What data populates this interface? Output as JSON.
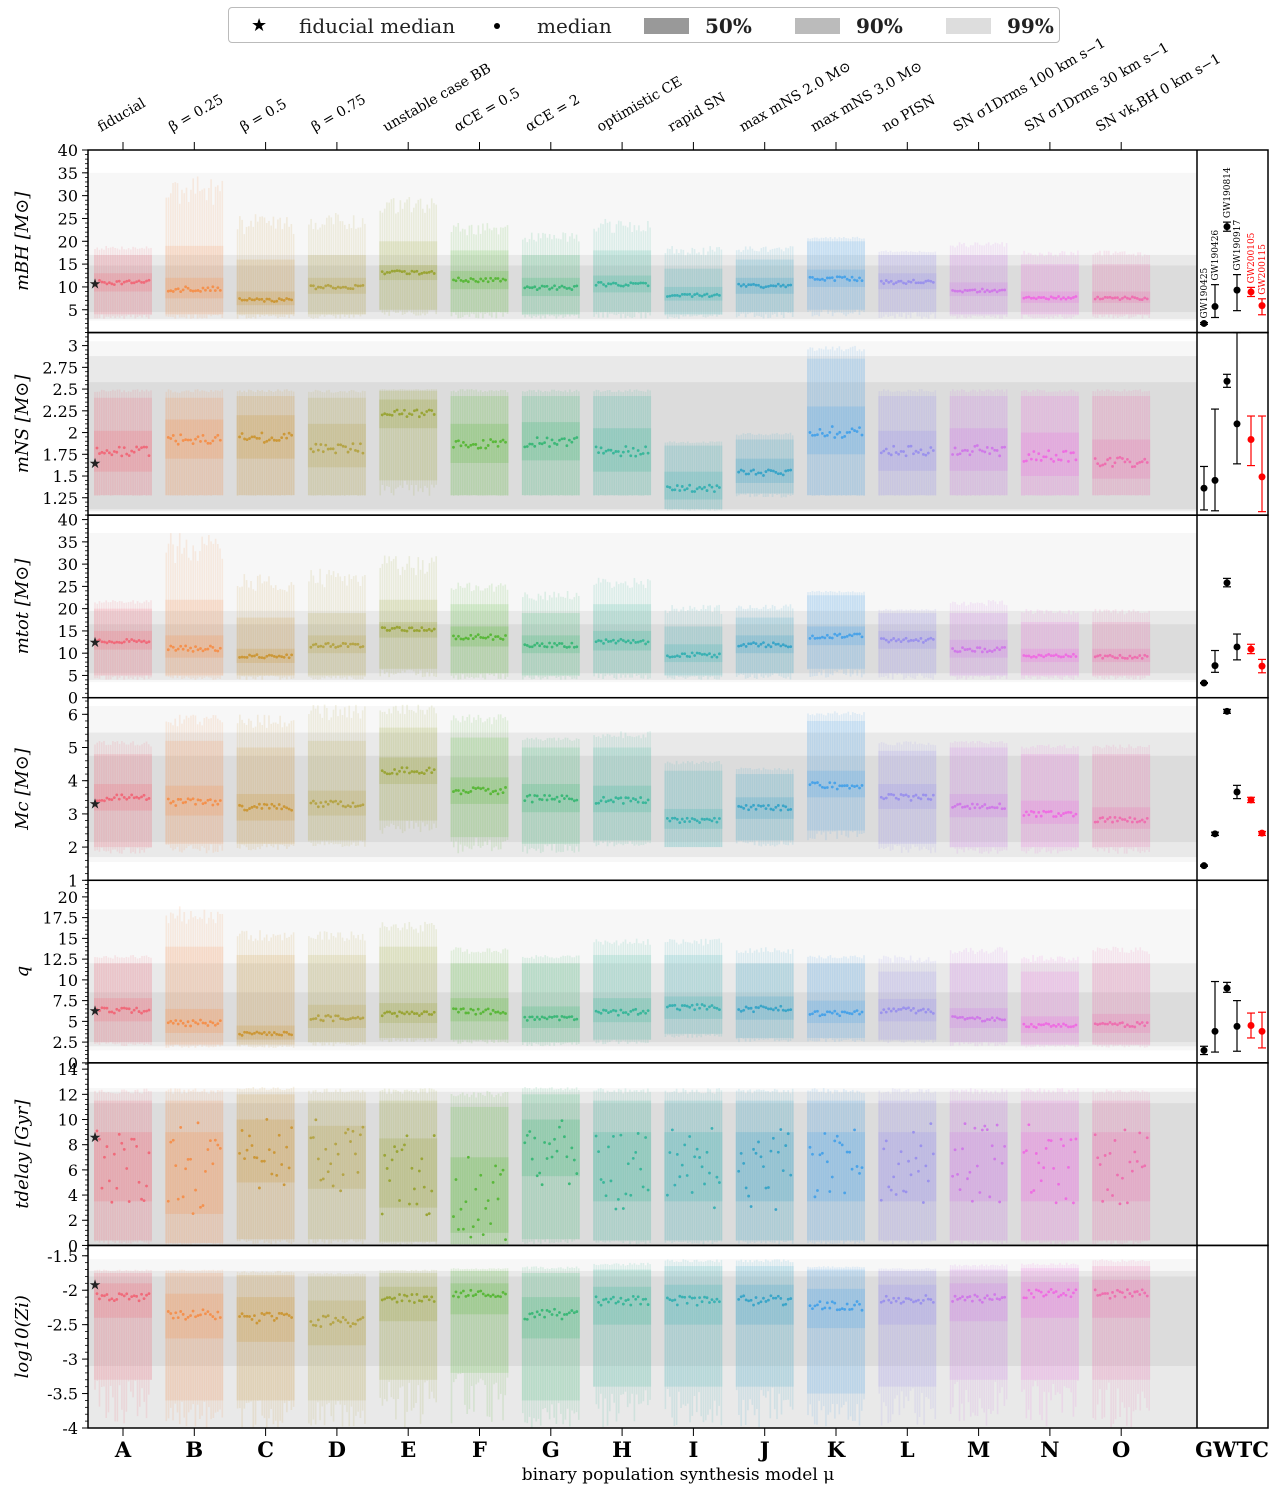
{
  "legend": {
    "fiducial_label": "fiducial median",
    "median_label": "median",
    "c50_label": "50%",
    "c90_label": "90%",
    "c99_label": "99%"
  },
  "chart_data": {
    "type": "violin-interval",
    "xlabel": "binary population synthesis model μ",
    "categories": [
      "A",
      "B",
      "C",
      "D",
      "E",
      "F",
      "G",
      "H",
      "I",
      "J",
      "K",
      "L",
      "M",
      "N",
      "O"
    ],
    "model_names": [
      "fiducial",
      "β = 0.25",
      "β = 0.5",
      "β = 0.75",
      "unstable case BB",
      "αCE = 0.5",
      "αCE = 2",
      "optimistic CE",
      "rapid SN",
      "max mNS 2.0 M⊙",
      "max mNS 3.0 M⊙",
      "no PISN",
      "SN σ1Drms 100 km s−1",
      "SN σ1Drms 30 km s−1",
      "SN vk,BH 0 km s−1"
    ],
    "observed_label": "GWTC",
    "observed_events": [
      "GW190425",
      "GW190426",
      "GW190814",
      "GW190917",
      "GW200105",
      "GW200115"
    ],
    "observed_event_colors": [
      "#000000",
      "#000000",
      "#000000",
      "#000000",
      "#ff0000",
      "#ff0000"
    ],
    "model_colors": [
      "#f06a7a",
      "#f4914e",
      "#cc9838",
      "#b5a548",
      "#9aa536",
      "#5ab83a",
      "#3cb878",
      "#3ab79a",
      "#3ab1b3",
      "#3aa5c8",
      "#4aa3e8",
      "#9b92ec",
      "#d07ae8",
      "#ee6ee2",
      "#ee70b0"
    ],
    "band_colors": {
      "c50": "#999999",
      "c90": "#bbbbbb",
      "c99": "#dddddd"
    },
    "panels": [
      {
        "ylabel": "mBH [M⊙]",
        "ylim": [
          0,
          40
        ],
        "yticks": [
          5,
          10,
          15,
          20,
          25,
          30,
          35,
          40
        ],
        "medians": [
          11,
          9.5,
          7.1,
          10,
          13.2,
          11.5,
          9.9,
          10.6,
          8.2,
          10.2,
          11.8,
          11.1,
          9.2,
          7.6,
          7.5
        ],
        "q25": [
          9,
          7.5,
          6,
          8.5,
          11.5,
          9.5,
          8,
          8.8,
          7,
          8.5,
          10,
          9.5,
          8,
          6.5,
          6.5
        ],
        "q75": [
          13,
          12,
          9,
          12,
          14.8,
          13.5,
          12,
          12.5,
          10,
          12,
          13.8,
          13,
          11,
          9,
          9
        ],
        "q05": [
          4,
          4,
          4,
          4,
          5,
          4.5,
          4,
          4.5,
          4,
          4.5,
          5,
          4.5,
          4,
          4,
          4
        ],
        "q95": [
          17,
          19,
          16,
          17,
          20,
          18,
          17,
          18,
          14,
          16,
          20,
          17,
          17,
          15,
          15
        ],
        "q005": [
          3,
          3,
          3,
          3,
          3.5,
          3,
          3,
          3,
          3,
          3,
          3.5,
          3,
          3,
          3,
          3
        ],
        "q995": [
          19,
          35,
          26,
          27,
          30,
          24,
          22,
          25,
          19,
          19,
          21,
          18,
          20,
          18,
          18
        ],
        "fiducial_value": 10.8,
        "gwtc_bands": {
          "c50": [
            4.5,
            14.7
          ],
          "c90": [
            3,
            17
          ],
          "c99": [
            2.6,
            35
          ]
        },
        "obs_values": [
          2,
          5.7,
          23.2,
          9.3,
          8.9,
          5.9
        ],
        "obs_err_lo": [
          0.2,
          2.4,
          1,
          4.5,
          1,
          2
        ],
        "obs_err_hi": [
          0.2,
          4.8,
          1,
          3.4,
          1,
          1.5
        ]
      },
      {
        "ylabel": "mNS [M⊙]",
        "ylim": [
          1.05,
          3.15
        ],
        "yticks": [
          1.25,
          1.5,
          1.75,
          2,
          2.25,
          2.5,
          2.75,
          3
        ],
        "medians": [
          1.78,
          1.92,
          1.94,
          1.82,
          2.22,
          1.87,
          1.89,
          1.79,
          1.36,
          1.54,
          2.01,
          1.79,
          1.79,
          1.73,
          1.66
        ],
        "q25": [
          1.55,
          1.7,
          1.7,
          1.6,
          2.05,
          1.65,
          1.68,
          1.55,
          1.23,
          1.42,
          1.75,
          1.56,
          1.56,
          1.5,
          1.47
        ],
        "q75": [
          2.02,
          2.15,
          2.2,
          2.1,
          2.38,
          2.1,
          2.12,
          2.05,
          1.55,
          1.7,
          2.3,
          2.02,
          2.05,
          2,
          1.92
        ],
        "q05": [
          1.28,
          1.28,
          1.28,
          1.28,
          1.45,
          1.28,
          1.28,
          1.28,
          1.12,
          1.3,
          1.28,
          1.28,
          1.28,
          1.28,
          1.28
        ],
        "q95": [
          2.4,
          2.4,
          2.42,
          2.4,
          2.48,
          2.42,
          2.42,
          2.42,
          1.85,
          1.92,
          2.85,
          2.42,
          2.42,
          2.42,
          2.42
        ],
        "q005": [
          1.27,
          1.27,
          1.27,
          1.27,
          1.27,
          1.27,
          1.27,
          1.27,
          1.1,
          1.25,
          1.27,
          1.27,
          1.27,
          1.27,
          1.27
        ],
        "q995": [
          2.5,
          2.5,
          2.5,
          2.5,
          2.5,
          2.5,
          2.5,
          2.5,
          1.9,
          2,
          3,
          2.5,
          2.5,
          2.5,
          2.5
        ],
        "fiducial_value": 1.65,
        "gwtc_bands": {
          "c50": [
            1.12,
            2.58
          ],
          "c90": [
            1.1,
            2.88
          ],
          "c99": [
            1.08,
            3.05
          ]
        },
        "obs_values": [
          1.36,
          1.45,
          2.59,
          2.1,
          1.92,
          1.49
        ],
        "obs_err_lo": [
          0.25,
          0.35,
          0.07,
          0.46,
          0.3,
          0.4
        ],
        "obs_err_hi": [
          0.25,
          0.82,
          0.08,
          1.1,
          0.27,
          0.7
        ]
      },
      {
        "ylabel": "mtot [M⊙]",
        "ylim": [
          0,
          41
        ],
        "yticks": [
          0,
          5,
          10,
          15,
          20,
          25,
          30,
          35,
          40
        ],
        "medians": [
          12.8,
          11,
          9.3,
          11.8,
          15.4,
          13.6,
          11.8,
          12.6,
          9.6,
          11.9,
          13.8,
          12.9,
          10.8,
          9.4,
          9.2
        ],
        "q25": [
          10.8,
          9,
          7.8,
          10,
          13.5,
          11.5,
          10,
          10.6,
          8,
          10,
          11.8,
          11,
          9,
          8,
          8
        ],
        "q75": [
          15,
          14,
          11,
          14,
          17,
          16,
          14,
          15,
          12,
          14,
          16,
          15,
          13,
          11,
          11
        ],
        "q05": [
          5,
          5,
          5,
          5,
          6.5,
          5.5,
          5,
          5.5,
          5,
          5.5,
          6.5,
          5.5,
          5,
          5,
          5
        ],
        "q95": [
          20,
          22,
          18,
          19,
          22,
          21,
          19,
          21,
          16,
          18,
          23,
          19,
          19,
          17,
          17
        ],
        "q005": [
          4,
          4,
          4,
          4,
          4.5,
          4,
          4,
          4,
          4,
          4,
          4.5,
          4,
          4,
          4,
          4
        ],
        "q995": [
          22,
          37,
          28,
          29,
          32,
          26,
          24,
          27,
          21,
          21,
          24,
          20,
          22,
          20,
          20
        ],
        "fiducial_value": 12.5,
        "gwtc_bands": {
          "c50": [
            5.5,
            16.5
          ],
          "c90": [
            4,
            19.5
          ],
          "c99": [
            3.5,
            37
          ]
        },
        "obs_values": [
          3.3,
          7.2,
          25.8,
          11.4,
          10.9,
          7.1
        ],
        "obs_err_lo": [
          0.1,
          1.5,
          0.9,
          2.9,
          1,
          1.5
        ],
        "obs_err_hi": [
          0.1,
          3.4,
          1,
          2.9,
          1.1,
          1.5
        ]
      },
      {
        "ylabel": "Mc [M⊙]",
        "ylim": [
          1,
          6.5
        ],
        "yticks": [
          1,
          2,
          3,
          4,
          5,
          6
        ],
        "medians": [
          3.48,
          3.35,
          3.2,
          3.3,
          4.3,
          3.7,
          3.46,
          3.4,
          2.8,
          3.18,
          3.85,
          3.5,
          3.22,
          3,
          2.82
        ],
        "q25": [
          3.1,
          2.95,
          2.8,
          2.95,
          3.9,
          3.3,
          3.05,
          3.05,
          2.55,
          2.85,
          3.5,
          3.15,
          2.9,
          2.7,
          2.55
        ],
        "q75": [
          3.9,
          3.85,
          3.6,
          3.7,
          4.7,
          4.1,
          3.9,
          3.85,
          3.15,
          3.5,
          4.3,
          3.9,
          3.6,
          3.4,
          3.2
        ],
        "q05": [
          2,
          2.1,
          2.1,
          2.2,
          2.8,
          2.3,
          2.1,
          2.2,
          2,
          2.2,
          2.5,
          2.1,
          2,
          2,
          2
        ],
        "q95": [
          4.8,
          5.2,
          5,
          5.2,
          5.6,
          5.3,
          5,
          5,
          4.3,
          4.2,
          5.8,
          4.9,
          5,
          4.8,
          4.8
        ],
        "q005": [
          1.8,
          1.8,
          1.9,
          2,
          2.4,
          1.8,
          1.8,
          2,
          2,
          2,
          2.2,
          1.8,
          1.8,
          1.8,
          1.8
        ],
        "q995": [
          5.2,
          6,
          6,
          6.3,
          6.3,
          6,
          5.3,
          5.5,
          4.6,
          4.4,
          6.1,
          5.2,
          5.2,
          5.1,
          5.1
        ],
        "fiducial_value": 3.32,
        "gwtc_bands": {
          "c50": [
            2.15,
            4.75
          ],
          "c90": [
            1.7,
            5.45
          ],
          "c99": [
            1.55,
            6.25
          ]
        },
        "obs_values": [
          1.44,
          2.4,
          6.09,
          3.66,
          3.42,
          2.42
        ],
        "obs_err_lo": [
          0.02,
          0.05,
          0.06,
          0.2,
          0.08,
          0.07
        ],
        "obs_err_hi": [
          0.02,
          0.05,
          0.06,
          0.2,
          0.08,
          0.05
        ]
      },
      {
        "ylabel": "q",
        "ylim": [
          0,
          22
        ],
        "yticks": [
          0,
          2.5,
          5,
          7.5,
          10,
          12.5,
          15,
          17.5,
          20
        ],
        "medians": [
          6.3,
          4.8,
          3.5,
          5.4,
          5.9,
          6.2,
          5.3,
          6.1,
          6.7,
          6.5,
          6,
          6.3,
          5.3,
          4.5,
          4.6
        ],
        "q25": [
          5,
          3.6,
          2.8,
          4.2,
          4.8,
          5,
          4.2,
          4.9,
          5.3,
          5.2,
          4.8,
          5,
          4.2,
          3.6,
          3.6
        ],
        "q75": [
          7.8,
          6.5,
          4.5,
          7,
          7.2,
          7.8,
          6.8,
          7.8,
          8,
          8,
          7.5,
          7.7,
          6.6,
          5.6,
          5.9
        ],
        "q05": [
          2.5,
          2.2,
          2.2,
          2.5,
          3,
          2.8,
          2.5,
          2.8,
          3.5,
          3,
          3,
          2.8,
          2.5,
          2.2,
          2.2
        ],
        "q95": [
          12,
          14,
          13,
          13,
          14,
          12,
          12,
          13,
          13,
          12,
          12,
          11,
          12,
          11,
          12
        ],
        "q005": [
          2,
          1.8,
          1.8,
          2,
          2.5,
          2.3,
          2,
          2.2,
          3,
          2.5,
          2.5,
          2.3,
          2,
          1.8,
          1.8
        ],
        "q995": [
          13,
          19,
          16,
          16,
          17,
          14,
          13,
          15,
          15,
          14,
          13,
          13,
          14,
          13,
          14
        ],
        "fiducial_value": 6.3,
        "gwtc_bands": {
          "c50": [
            2.5,
            8.5
          ],
          "c90": [
            2,
            12
          ],
          "c99": [
            1.5,
            18.5
          ]
        },
        "obs_values": [
          1.5,
          3.8,
          9,
          4.4,
          4.5,
          3.8
        ],
        "obs_err_lo": [
          0.5,
          2.5,
          0.5,
          3,
          1.5,
          2
        ],
        "obs_err_hi": [
          0.5,
          6,
          0.7,
          3.1,
          1.5,
          2.3
        ]
      },
      {
        "ylabel": "tdelay [Gyr]",
        "ylim": [
          0,
          14.5
        ],
        "yticks": [
          0,
          2,
          4,
          6,
          8,
          10,
          12,
          14
        ],
        "medians": [
          6.5,
          6,
          7.5,
          7,
          5.5,
          3.5,
          7.5,
          6,
          6,
          6,
          6,
          6.5,
          6.5,
          6.5,
          6
        ],
        "q25": [
          3.5,
          2.5,
          5,
          4.5,
          3,
          1,
          5.5,
          3.5,
          3.5,
          3.5,
          3.5,
          3.5,
          3.5,
          3.5,
          3.5
        ],
        "q75": [
          9,
          9,
          10,
          9.5,
          8.5,
          7,
          10,
          9,
          9,
          9,
          9,
          9,
          9,
          9,
          9
        ],
        "q05": [
          0.4,
          0.2,
          0.5,
          0.5,
          0.3,
          0.1,
          0.5,
          0.4,
          0.4,
          0.4,
          0.4,
          0.4,
          0.4,
          0.4,
          0.4
        ],
        "q95": [
          11.5,
          11.5,
          12,
          11.5,
          11.5,
          11,
          12,
          11.5,
          11.5,
          11.5,
          11.5,
          11.5,
          11.5,
          11.5,
          11.5
        ],
        "q005": [
          0.1,
          0.05,
          0.1,
          0.1,
          0.05,
          0.05,
          0.1,
          0.1,
          0.1,
          0.1,
          0.1,
          0.1,
          0.1,
          0.1,
          0.1
        ],
        "q995": [
          12.5,
          12.5,
          12.6,
          12.5,
          12.5,
          12.3,
          12.6,
          12.5,
          12.5,
          12.5,
          12.5,
          12.5,
          12.5,
          12.5,
          12.5
        ],
        "fiducial_value": 8.6,
        "gwtc_bands": {
          "c50": [
            0,
            11.3
          ],
          "c90": [
            0,
            12.2
          ],
          "c99": [
            0,
            12.5
          ]
        },
        "obs_values": [],
        "obs_err_lo": [],
        "obs_err_hi": []
      },
      {
        "ylabel": "log10(Zi)",
        "ylim": [
          -4,
          -1.35
        ],
        "yticks": [
          -4,
          -3.5,
          -3,
          -2.5,
          -2,
          -1.5
        ],
        "medians": [
          -2.1,
          -2.35,
          -2.4,
          -2.45,
          -2.12,
          -2.05,
          -2.35,
          -2.15,
          -2.15,
          -2.15,
          -2.22,
          -2.15,
          -2.12,
          -2.05,
          -2.05
        ],
        "q25": [
          -2.4,
          -2.7,
          -2.75,
          -2.8,
          -2.45,
          -2.35,
          -2.7,
          -2.5,
          -2.5,
          -2.5,
          -2.55,
          -2.5,
          -2.45,
          -2.4,
          -2.4
        ],
        "q75": [
          -1.9,
          -2.05,
          -2.1,
          -2.15,
          -1.95,
          -1.9,
          -2.1,
          -1.95,
          -1.92,
          -1.92,
          -1.98,
          -1.92,
          -1.9,
          -1.88,
          -1.85
        ],
        "q05": [
          -3.3,
          -3.6,
          -3.6,
          -3.6,
          -3.3,
          -3.2,
          -3.6,
          -3.4,
          -3.4,
          -3.4,
          -3.5,
          -3.4,
          -3.3,
          -3.3,
          -3.3
        ],
        "q95": [
          -1.75,
          -1.75,
          -1.78,
          -1.8,
          -1.75,
          -1.72,
          -1.75,
          -1.7,
          -1.65,
          -1.65,
          -1.7,
          -1.72,
          -1.7,
          -1.68,
          -1.65
        ],
        "q005": [
          -4,
          -4,
          -4,
          -4,
          -4,
          -4,
          -4,
          -4,
          -4,
          -4,
          -4,
          -4,
          -4,
          -4,
          -4
        ],
        "q995": [
          -1.7,
          -1.7,
          -1.72,
          -1.75,
          -1.7,
          -1.68,
          -1.65,
          -1.6,
          -1.55,
          -1.55,
          -1.65,
          -1.68,
          -1.62,
          -1.6,
          -1.55
        ],
        "fiducial_value": -1.92,
        "gwtc_bands": {
          "c50": [
            -3.1,
            -1.8
          ],
          "c90": [
            -4,
            -1.72
          ],
          "c99": [
            -4,
            -1.55
          ]
        },
        "obs_values": [],
        "obs_err_lo": [],
        "obs_err_hi": []
      }
    ]
  }
}
